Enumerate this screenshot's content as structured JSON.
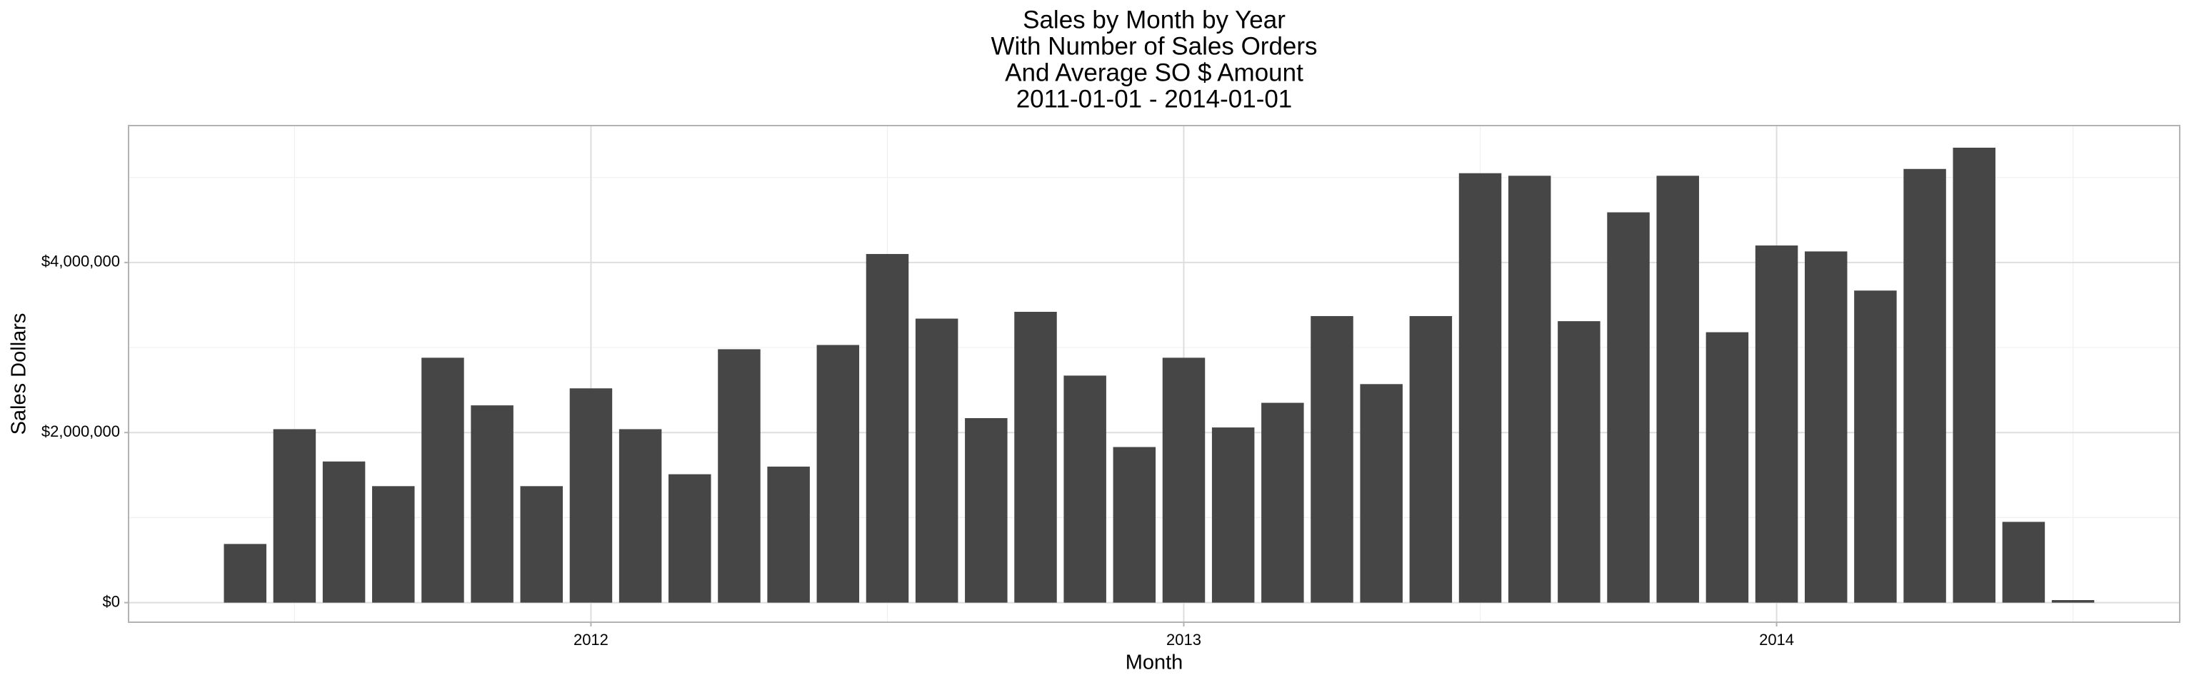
{
  "chart_data": {
    "type": "bar",
    "title": [
      "Sales by Month by Year",
      "With Number of Sales Orders",
      "And Average SO $ Amount",
      "2011-01-01  -  2014-01-01"
    ],
    "x_label": "Month",
    "y_label": "Sales Dollars",
    "x": [
      "2011-05",
      "2011-06",
      "2011-07",
      "2011-08",
      "2011-09",
      "2011-10",
      "2011-11",
      "2011-12",
      "2012-01",
      "2012-02",
      "2012-03",
      "2012-04",
      "2012-05",
      "2012-06",
      "2012-07",
      "2012-08",
      "2012-09",
      "2012-10",
      "2012-11",
      "2012-12",
      "2013-01",
      "2013-02",
      "2013-03",
      "2013-04",
      "2013-05",
      "2013-06",
      "2013-07",
      "2013-08",
      "2013-09",
      "2013-10",
      "2013-11",
      "2013-12",
      "2014-01",
      "2014-02",
      "2014-03",
      "2014-04",
      "2014-05",
      "2014-06"
    ],
    "values": [
      690000,
      2040000,
      1660000,
      1370000,
      2880000,
      2320000,
      1370000,
      2520000,
      2040000,
      1510000,
      2980000,
      1600000,
      3030000,
      4100000,
      3340000,
      2170000,
      3420000,
      2670000,
      1830000,
      2880000,
      2060000,
      2350000,
      3370000,
      2570000,
      3370000,
      5050000,
      5020000,
      3310000,
      4590000,
      5020000,
      3180000,
      4200000,
      4130000,
      3670000,
      5100000,
      5350000,
      950000,
      30000
    ],
    "color": "#464646",
    "xlim": [
      2011.22,
      2014.68
    ],
    "xticks": [
      2012,
      2013,
      2014
    ],
    "minor_xticks": [
      2011.5,
      2012.5,
      2013.5,
      2014.5
    ],
    "ylim": [
      -230000,
      5610000
    ],
    "yticks": [
      {
        "value": 0,
        "label": "$0"
      },
      {
        "value": 2000000,
        "label": "$2,000,000"
      },
      {
        "value": 4000000,
        "label": "$4,000,000"
      }
    ],
    "minor_yticks": [
      1000000,
      3000000,
      5000000
    ],
    "grid": true
  }
}
